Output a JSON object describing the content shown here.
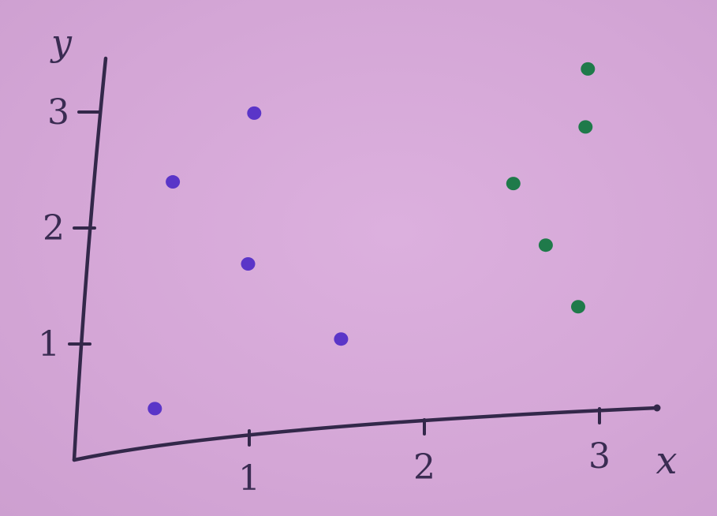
{
  "chart_data": {
    "type": "scatter",
    "title": "",
    "xlabel": "x",
    "ylabel": "y",
    "xlim": [
      0,
      3.5
    ],
    "ylim": [
      0,
      3.3
    ],
    "x_ticks": [
      1,
      2,
      3
    ],
    "y_ticks": [
      1,
      2,
      3
    ],
    "x_tick_labels": [
      "1",
      "2",
      "3"
    ],
    "y_tick_labels": [
      "1",
      "2",
      "3"
    ],
    "grid": false,
    "legend": "none",
    "series": [
      {
        "color": "#5a35c8",
        "points": [
          {
            "x": 0.45,
            "y": 0.4
          },
          {
            "x": 0.5,
            "y": 2.35
          },
          {
            "x": 0.95,
            "y": 1.6
          },
          {
            "x": 0.95,
            "y": 2.9
          },
          {
            "x": 1.5,
            "y": 0.9
          }
        ]
      },
      {
        "color": "#1f7a4a",
        "points": [
          {
            "x": 2.45,
            "y": 2.15
          },
          {
            "x": 2.65,
            "y": 1.6
          },
          {
            "x": 2.85,
            "y": 1.05
          },
          {
            "x": 2.85,
            "y": 2.6
          },
          {
            "x": 2.85,
            "y": 3.1
          }
        ]
      }
    ]
  }
}
